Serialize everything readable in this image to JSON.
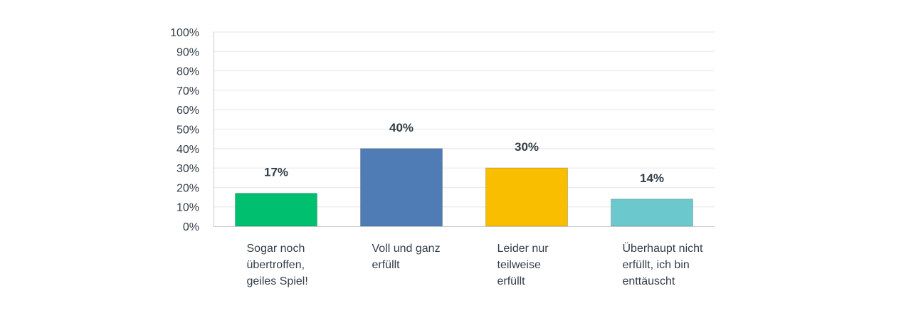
{
  "chart_data": {
    "type": "bar",
    "categories": [
      [
        "Sogar noch",
        "übertroffen,",
        "geiles Spiel!"
      ],
      [
        "Voll und ganz",
        "erfüllt"
      ],
      [
        "Leider nur",
        "teilweise",
        "erfüllt"
      ],
      [
        "Überhaupt nicht",
        "erfüllt, ich bin",
        "enttäuscht"
      ]
    ],
    "values": [
      17,
      40,
      30,
      14
    ],
    "value_labels": [
      "17%",
      "40%",
      "30%",
      "14%"
    ],
    "y_ticks": [
      "0%",
      "10%",
      "20%",
      "30%",
      "40%",
      "50%",
      "60%",
      "70%",
      "80%",
      "90%",
      "100%"
    ],
    "ylim": [
      0,
      100
    ],
    "grid": true,
    "colors": [
      "#00bf6f",
      "#507cb6",
      "#f9be00",
      "#6bc8cd"
    ],
    "title": "",
    "xlabel": "",
    "ylabel": ""
  }
}
